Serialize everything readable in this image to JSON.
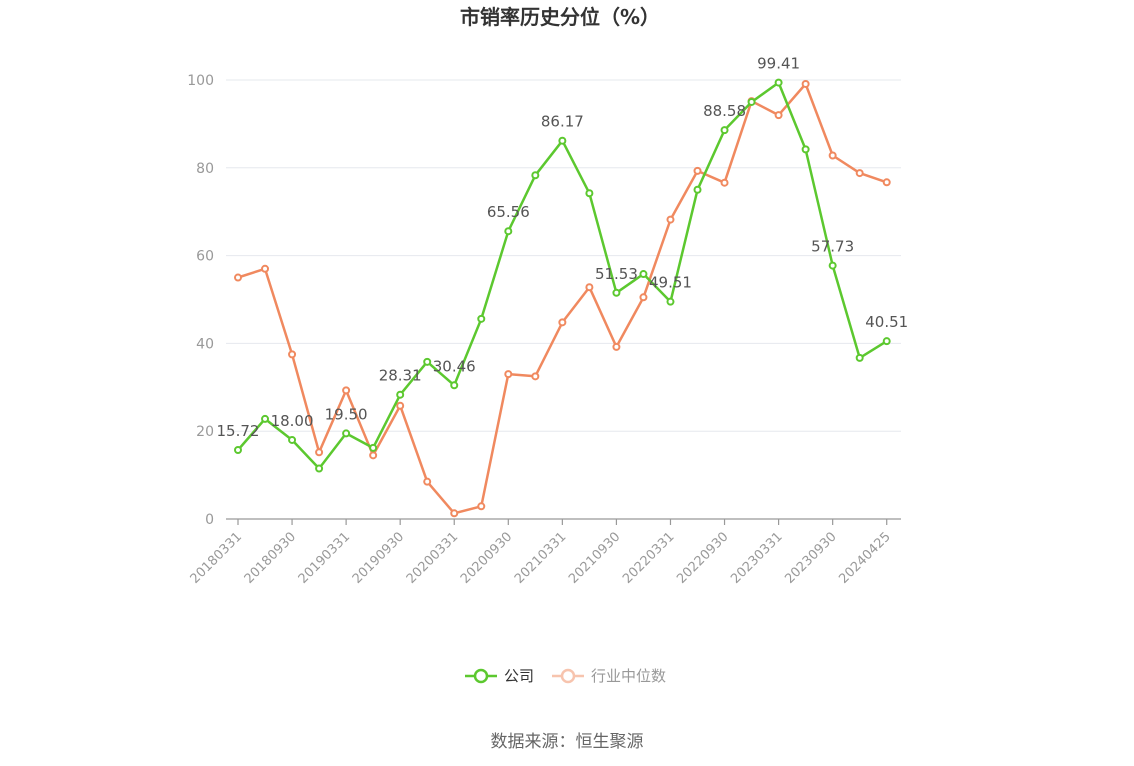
{
  "chart_data": {
    "type": "line",
    "title": "市销率历史分位（%）",
    "source": "数据来源：恒生聚源",
    "ylim": [
      0,
      100
    ],
    "y_ticks": [
      0,
      20,
      40,
      60,
      80,
      100
    ],
    "x": [
      "20180331",
      "20180630",
      "20180930",
      "20181231",
      "20190331",
      "20190630",
      "20190930",
      "20191231",
      "20200331",
      "20200630",
      "20200930",
      "20201231",
      "20210331",
      "20210630",
      "20210930",
      "20211231",
      "20220331",
      "20220630",
      "20220930",
      "20221231",
      "20230331",
      "20230630",
      "20230930",
      "20231231",
      "20240425"
    ],
    "x_tick_labels": [
      "20180331",
      "20180930",
      "20190331",
      "20190930",
      "20200331",
      "20200930",
      "20210331",
      "20210930",
      "20220331",
      "20220930",
      "20230331",
      "20230930",
      "20240425"
    ],
    "legend_position": "bottom-center",
    "grid": true,
    "series": [
      {
        "name": "公司",
        "color": "#5cc82f",
        "values": [
          15.72,
          22.8,
          18.0,
          11.5,
          19.5,
          16.2,
          28.31,
          35.8,
          30.46,
          45.6,
          65.56,
          78.3,
          86.17,
          74.2,
          51.53,
          55.8,
          49.51,
          75.0,
          88.58,
          95.0,
          99.41,
          84.2,
          57.73,
          36.7,
          40.51
        ],
        "labels": {
          "0": "15.72",
          "2": "18.00",
          "4": "19.50",
          "6": "28.31",
          "8": "30.46",
          "10": "65.56",
          "12": "86.17",
          "14": "51.53",
          "16": "49.51",
          "18": "88.58",
          "20": "99.41",
          "22": "57.73",
          "24": "40.51"
        }
      },
      {
        "name": "行业中位数",
        "color": "#f0895f",
        "values": [
          55.0,
          57.0,
          37.5,
          15.2,
          29.3,
          14.5,
          25.8,
          8.5,
          1.3,
          2.9,
          33.0,
          32.5,
          44.8,
          52.8,
          39.2,
          50.5,
          68.2,
          79.3,
          76.6,
          95.2,
          92.0,
          99.1,
          82.8,
          78.8,
          76.7
        ]
      }
    ]
  }
}
